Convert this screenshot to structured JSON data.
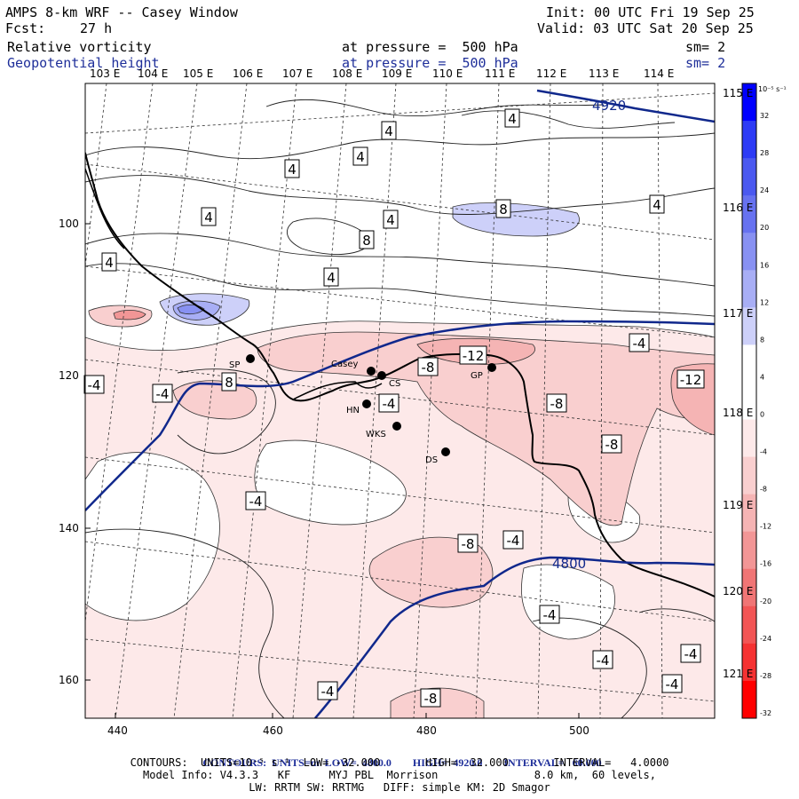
{
  "header": {
    "title": "AMPS 8-km WRF -- Casey Window",
    "init": "Init: 00 UTC Fri 19 Sep 25",
    "fcst_label": "Fcst:",
    "fcst_value": "27 h",
    "valid": "Valid: 03 UTC Sat 20 Sep 25"
  },
  "fields": [
    {
      "name": "Relative vorticity",
      "level": "at pressure =  500 hPa",
      "sm": "sm= 2"
    },
    {
      "name": "Geopotential height",
      "level": "at pressure =  500 hPa",
      "sm": "sm= 2"
    }
  ],
  "lon_labels": [
    "103 E",
    "104 E",
    "105 E",
    "106 E",
    "107 E",
    "108 E",
    "109 E",
    "110 E",
    "111 E",
    "112 E",
    "113 E",
    "114 E"
  ],
  "lat_labels_right": [
    "115 E",
    "116 E",
    "117 E",
    "118 E",
    "119 E",
    "120 E",
    "121 E"
  ],
  "y_ticks": [
    "100",
    "120",
    "140",
    "160"
  ],
  "x_ticks": [
    "440",
    "460",
    "480",
    "500"
  ],
  "colorbar": {
    "unit": "10⁻⁵ s⁻¹",
    "levels": [
      "32",
      "28",
      "24",
      "20",
      "16",
      "12",
      "8",
      "4",
      "0",
      "-4",
      "-8",
      "-12",
      "-16",
      "-20",
      "-24",
      "-28",
      "-32"
    ],
    "colors": [
      "#0000ff",
      "#2d3bf5",
      "#4b59f0",
      "#6772f0",
      "#8891f2",
      "#a8aef5",
      "#cdd0f9",
      "#ffffff",
      "#ffffff",
      "#fde9e9",
      "#f9cfcf",
      "#f5b4b4",
      "#f29696",
      "#f07575",
      "#f25555",
      "#f53232",
      "#ff0000"
    ]
  },
  "stations": [
    {
      "name": "SP"
    },
    {
      "name": "Casey"
    },
    {
      "name": "CS"
    },
    {
      "name": "HN"
    },
    {
      "name": "WKS"
    },
    {
      "name": "DS"
    },
    {
      "name": "GP"
    }
  ],
  "contour_labels": {
    "height": [
      "4920",
      "4800"
    ],
    "vorticity": [
      "4",
      "4",
      "4",
      "4",
      "-4",
      "8",
      "4",
      "4",
      "4",
      "4",
      "4",
      "8",
      "-4",
      "8",
      "-12",
      "-8",
      "-4",
      "-12",
      "-4",
      "-8",
      "-8",
      "-4",
      "-8",
      "-4",
      "-4",
      "-4",
      "-4",
      "-4",
      "-4",
      "-8"
    ]
  },
  "footer": {
    "line1_a": "CONTOURS:",
    "line1_b": "UNITS=m  LOW=  4800.0",
    "line1_c": "HIGH=  4920.0",
    "line1_d": "INTERVAL=   60.000",
    "line2": "CONTOURS:  UNITS=10⁻⁵ s⁻¹  LOW= -32.000       HIGH=  32.000       INTERVAL=   4.0000",
    "line3": "Model Info: V4.3.3   KF      MYJ PBL  Morrison               8.0 km,  60 levels,",
    "line4": "LW: RRTM SW: RRTMG   DIFF: simple KM: 2D Smagor"
  }
}
